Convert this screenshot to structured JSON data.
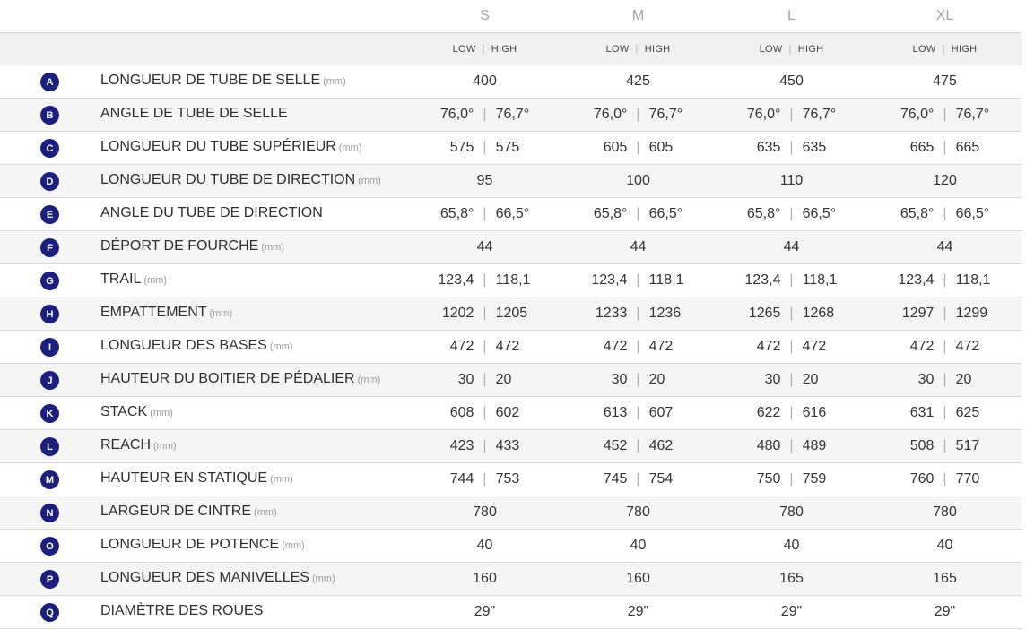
{
  "sizes": [
    "S",
    "M",
    "L",
    "XL"
  ],
  "low_label": "LOW",
  "high_label": "HIGH",
  "unit_text": "(mm)",
  "colors": {
    "badge": "#1b1f7e",
    "row_alt": "#f5f5f5",
    "header_band": "#f0f0f0"
  },
  "rows": [
    {
      "letter": "A",
      "label": "LONGUEUR DE TUBE DE SELLE",
      "unit": "(mm)",
      "values": [
        "400",
        "425",
        "450",
        "475"
      ]
    },
    {
      "letter": "B",
      "label": "ANGLE DE TUBE DE SELLE",
      "unit": "",
      "values": [
        [
          "76,0°",
          "76,7°"
        ],
        [
          "76,0°",
          "76,7°"
        ],
        [
          "76,0°",
          "76,7°"
        ],
        [
          "76,0°",
          "76,7°"
        ]
      ]
    },
    {
      "letter": "C",
      "label": "LONGUEUR DU TUBE SUPÉRIEUR",
      "unit": "(mm)",
      "values": [
        [
          "575",
          "575"
        ],
        [
          "605",
          "605"
        ],
        [
          "635",
          "635"
        ],
        [
          "665",
          "665"
        ]
      ]
    },
    {
      "letter": "D",
      "label": "LONGUEUR DU TUBE DE DIRECTION",
      "unit": "(mm)",
      "values": [
        "95",
        "100",
        "110",
        "120"
      ]
    },
    {
      "letter": "E",
      "label": "ANGLE DU TUBE DE DIRECTION",
      "unit": "",
      "values": [
        [
          "65,8°",
          "66,5°"
        ],
        [
          "65,8°",
          "66,5°"
        ],
        [
          "65,8°",
          "66,5°"
        ],
        [
          "65,8°",
          "66,5°"
        ]
      ]
    },
    {
      "letter": "F",
      "label": "DÉPORT DE FOURCHE",
      "unit": "(mm)",
      "values": [
        "44",
        "44",
        "44",
        "44"
      ]
    },
    {
      "letter": "G",
      "label": "TRAIL",
      "unit": "(mm)",
      "values": [
        [
          "123,4",
          "118,1"
        ],
        [
          "123,4",
          "118,1"
        ],
        [
          "123,4",
          "118,1"
        ],
        [
          "123,4",
          "118,1"
        ]
      ]
    },
    {
      "letter": "H",
      "label": "EMPATTEMENT",
      "unit": "(mm)",
      "values": [
        [
          "1202",
          "1205"
        ],
        [
          "1233",
          "1236"
        ],
        [
          "1265",
          "1268"
        ],
        [
          "1297",
          "1299"
        ]
      ]
    },
    {
      "letter": "I",
      "label": "LONGUEUR DES BASES",
      "unit": "(mm)",
      "values": [
        [
          "472",
          "472"
        ],
        [
          "472",
          "472"
        ],
        [
          "472",
          "472"
        ],
        [
          "472",
          "472"
        ]
      ]
    },
    {
      "letter": "J",
      "label": "HAUTEUR DU BOITIER DE PÉDALIER",
      "unit": "(mm)",
      "values": [
        [
          "30",
          "20"
        ],
        [
          "30",
          "20"
        ],
        [
          "30",
          "20"
        ],
        [
          "30",
          "20"
        ]
      ]
    },
    {
      "letter": "K",
      "label": "STACK",
      "unit": "(mm)",
      "values": [
        [
          "608",
          "602"
        ],
        [
          "613",
          "607"
        ],
        [
          "622",
          "616"
        ],
        [
          "631",
          "625"
        ]
      ]
    },
    {
      "letter": "L",
      "label": "REACH",
      "unit": "(mm)",
      "values": [
        [
          "423",
          "433"
        ],
        [
          "452",
          "462"
        ],
        [
          "480",
          "489"
        ],
        [
          "508",
          "517"
        ]
      ]
    },
    {
      "letter": "M",
      "label": "HAUTEUR EN STATIQUE",
      "unit": "(mm)",
      "values": [
        [
          "744",
          "753"
        ],
        [
          "745",
          "754"
        ],
        [
          "750",
          "759"
        ],
        [
          "760",
          "770"
        ]
      ]
    },
    {
      "letter": "N",
      "label": "LARGEUR DE CINTRE",
      "unit": "(mm)",
      "values": [
        "780",
        "780",
        "780",
        "780"
      ]
    },
    {
      "letter": "O",
      "label": "LONGUEUR DE POTENCE",
      "unit": "(mm)",
      "values": [
        "40",
        "40",
        "40",
        "40"
      ]
    },
    {
      "letter": "P",
      "label": "LONGUEUR DES MANIVELLES",
      "unit": "(mm)",
      "values": [
        "160",
        "160",
        "165",
        "165"
      ]
    },
    {
      "letter": "Q",
      "label": "DIAMÈTRE DES ROUES",
      "unit": "",
      "values": [
        "29\"",
        "29\"",
        "29\"",
        "29\""
      ]
    }
  ]
}
